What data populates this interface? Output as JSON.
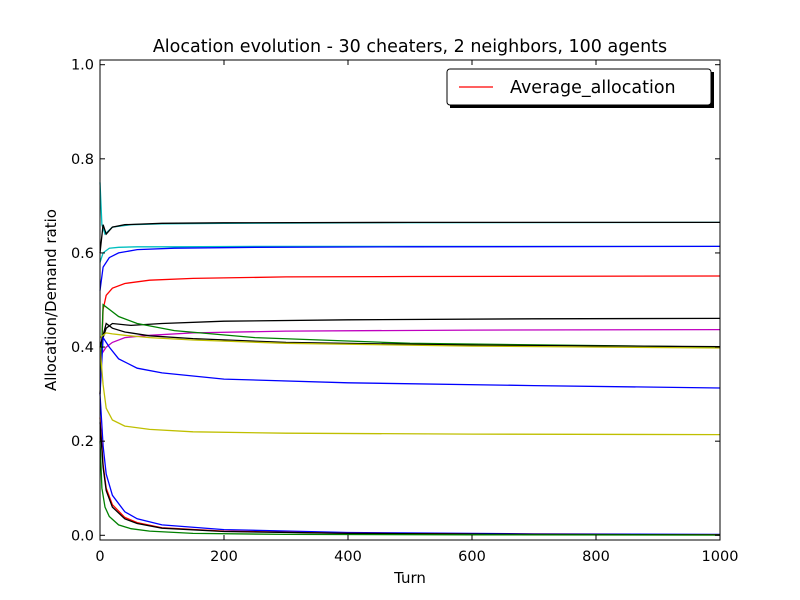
{
  "chart_data": {
    "type": "line",
    "title": "Alocation evolution - 30 cheaters, 2 neighbors, 100 agents",
    "xlabel": "Turn",
    "ylabel": "Allocation/Demand ratio",
    "xlim": [
      0,
      1000
    ],
    "ylim": [
      -0.01,
      1.01
    ],
    "xticks": [
      0,
      200,
      400,
      600,
      800,
      1000
    ],
    "yticks": [
      0.0,
      0.2,
      0.4,
      0.6,
      0.8,
      1.0
    ],
    "xtick_labels": [
      "0",
      "200",
      "400",
      "600",
      "800",
      "1000"
    ],
    "ytick_labels": [
      "0.0",
      "0.2",
      "0.4",
      "0.6",
      "0.8",
      "1.0"
    ],
    "grid": false,
    "legend": {
      "placement": "top-right",
      "entries": [
        {
          "label": "Average_allocation",
          "color": "#ff0000"
        }
      ]
    },
    "series": [
      {
        "name": "Average_allocation",
        "color": "#ff0000",
        "x": [
          0,
          5,
          10,
          20,
          40,
          80,
          150,
          300,
          500,
          1000
        ],
        "y": [
          0.3,
          0.48,
          0.51,
          0.525,
          0.535,
          0.542,
          0.546,
          0.549,
          0.55,
          0.551
        ]
      },
      {
        "color": "#00bfbf",
        "x": [
          0,
          3,
          8,
          20,
          50,
          100,
          200,
          400,
          1000
        ],
        "y": [
          0.75,
          0.66,
          0.64,
          0.655,
          0.66,
          0.662,
          0.663,
          0.664,
          0.665
        ]
      },
      {
        "color": "#000000",
        "x": [
          0,
          5,
          10,
          20,
          40,
          100,
          200,
          500,
          1000
        ],
        "y": [
          0.6,
          0.66,
          0.64,
          0.655,
          0.66,
          0.663,
          0.664,
          0.665,
          0.665
        ]
      },
      {
        "color": "#00bfbf",
        "x": [
          0,
          5,
          15,
          30,
          60,
          120,
          250,
          500,
          1000
        ],
        "y": [
          0.58,
          0.6,
          0.61,
          0.612,
          0.613,
          0.613,
          0.614,
          0.614,
          0.614
        ]
      },
      {
        "color": "#0000ff",
        "x": [
          0,
          5,
          15,
          30,
          60,
          120,
          250,
          500,
          1000
        ],
        "y": [
          0.52,
          0.57,
          0.59,
          0.6,
          0.607,
          0.61,
          0.612,
          0.613,
          0.614
        ]
      },
      {
        "color": "#000000",
        "x": [
          0,
          10,
          20,
          50,
          100,
          200,
          400,
          700,
          1000
        ],
        "y": [
          0.4,
          0.44,
          0.45,
          0.446,
          0.45,
          0.455,
          0.458,
          0.46,
          0.461
        ]
      },
      {
        "color": "#bf00bf",
        "x": [
          0,
          10,
          20,
          40,
          80,
          150,
          300,
          600,
          1000
        ],
        "y": [
          0.38,
          0.4,
          0.41,
          0.42,
          0.425,
          0.43,
          0.434,
          0.436,
          0.437
        ]
      },
      {
        "color": "#008000",
        "x": [
          0,
          5,
          15,
          30,
          60,
          120,
          250,
          500,
          1000
        ],
        "y": [
          0.3,
          0.49,
          0.48,
          0.465,
          0.45,
          0.435,
          0.42,
          0.408,
          0.4
        ]
      },
      {
        "color": "#000000",
        "x": [
          0,
          10,
          20,
          40,
          80,
          150,
          300,
          600,
          1000
        ],
        "y": [
          0.4,
          0.45,
          0.44,
          0.432,
          0.424,
          0.418,
          0.41,
          0.404,
          0.401
        ]
      },
      {
        "color": "#bfbf00",
        "x": [
          0,
          10,
          20,
          40,
          80,
          150,
          300,
          600,
          1000
        ],
        "y": [
          0.42,
          0.43,
          0.428,
          0.425,
          0.42,
          0.415,
          0.408,
          0.402,
          0.398
        ]
      },
      {
        "color": "#0000ff",
        "x": [
          0,
          5,
          15,
          30,
          60,
          100,
          200,
          400,
          700,
          1000
        ],
        "y": [
          0.3,
          0.42,
          0.4,
          0.375,
          0.355,
          0.345,
          0.332,
          0.324,
          0.318,
          0.313
        ]
      },
      {
        "color": "#bfbf00",
        "x": [
          0,
          5,
          10,
          20,
          40,
          80,
          150,
          300,
          600,
          1000
        ],
        "y": [
          0.4,
          0.32,
          0.27,
          0.245,
          0.232,
          0.225,
          0.22,
          0.217,
          0.215,
          0.214
        ]
      },
      {
        "color": "#0000ff",
        "x": [
          0,
          5,
          10,
          20,
          40,
          60,
          100,
          200,
          400,
          700,
          1000
        ],
        "y": [
          0.3,
          0.19,
          0.13,
          0.085,
          0.05,
          0.035,
          0.022,
          0.012,
          0.006,
          0.003,
          0.002
        ]
      },
      {
        "color": "#ff0000",
        "x": [
          0,
          5,
          10,
          20,
          40,
          60,
          100,
          200,
          400,
          700,
          1000
        ],
        "y": [
          0.25,
          0.15,
          0.1,
          0.065,
          0.038,
          0.027,
          0.016,
          0.009,
          0.004,
          0.002,
          0.001
        ]
      },
      {
        "color": "#000000",
        "x": [
          0,
          5,
          10,
          20,
          40,
          60,
          100,
          200,
          400,
          700,
          1000
        ],
        "y": [
          0.24,
          0.145,
          0.095,
          0.06,
          0.035,
          0.025,
          0.015,
          0.008,
          0.004,
          0.002,
          0.001
        ]
      },
      {
        "color": "#008000",
        "x": [
          0,
          3,
          8,
          15,
          30,
          50,
          80,
          150,
          300,
          600,
          1000
        ],
        "y": [
          0.2,
          0.1,
          0.06,
          0.04,
          0.022,
          0.014,
          0.009,
          0.004,
          0.002,
          0.001,
          0.0005
        ]
      }
    ]
  }
}
